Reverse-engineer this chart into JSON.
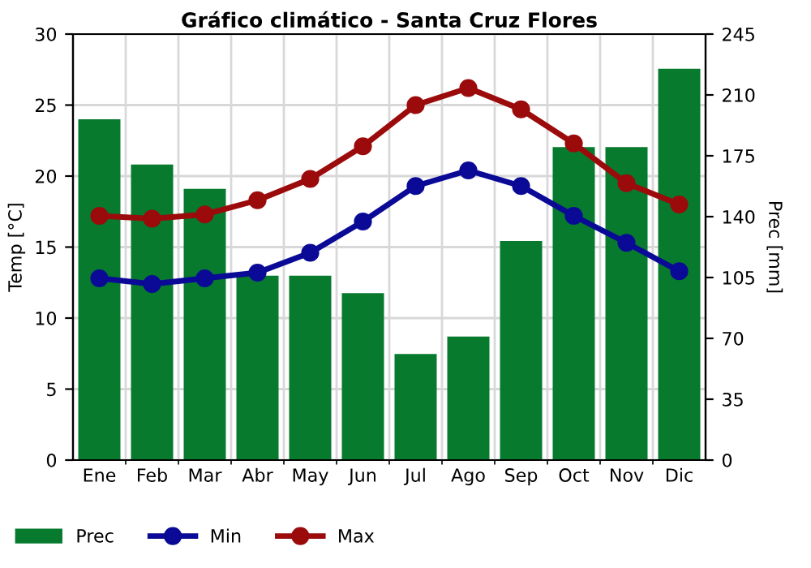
{
  "chart_data": {
    "type": "bar",
    "title": "Gráfico climático - Santa Cruz Flores",
    "ylabel": "Temp [°C]",
    "y2label": "Prec [mm]",
    "categories": [
      "Ene",
      "Feb",
      "Mar",
      "Abr",
      "May",
      "Jun",
      "Jul",
      "Ago",
      "Sep",
      "Oct",
      "Nov",
      "Dic"
    ],
    "series": [
      {
        "name": "Prec",
        "axis": "y2",
        "color": "#077a2e",
        "values": [
          196,
          170,
          156,
          106,
          106,
          96,
          61,
          71,
          126,
          180,
          180,
          225
        ]
      },
      {
        "name": "Min",
        "type": "line",
        "color": "#0a0a96",
        "marker": "circle",
        "values": [
          12.8,
          12.4,
          12.8,
          13.2,
          14.6,
          16.8,
          19.3,
          20.4,
          19.3,
          17.2,
          15.3,
          13.3
        ]
      },
      {
        "name": "Max",
        "type": "line",
        "color": "#9b0b0b",
        "marker": "circle",
        "values": [
          17.2,
          17.0,
          17.3,
          18.3,
          19.8,
          22.1,
          25.0,
          26.2,
          24.7,
          22.3,
          19.5,
          18.0
        ]
      }
    ],
    "ylim": [
      0,
      30
    ],
    "yticks": [
      0,
      5,
      10,
      15,
      20,
      25,
      30
    ],
    "y2lim": [
      0,
      245
    ],
    "y2ticks": [
      0,
      35,
      70,
      105,
      140,
      175,
      210,
      245
    ],
    "grid": true,
    "legend": "bottom left",
    "line_style": "solid"
  }
}
